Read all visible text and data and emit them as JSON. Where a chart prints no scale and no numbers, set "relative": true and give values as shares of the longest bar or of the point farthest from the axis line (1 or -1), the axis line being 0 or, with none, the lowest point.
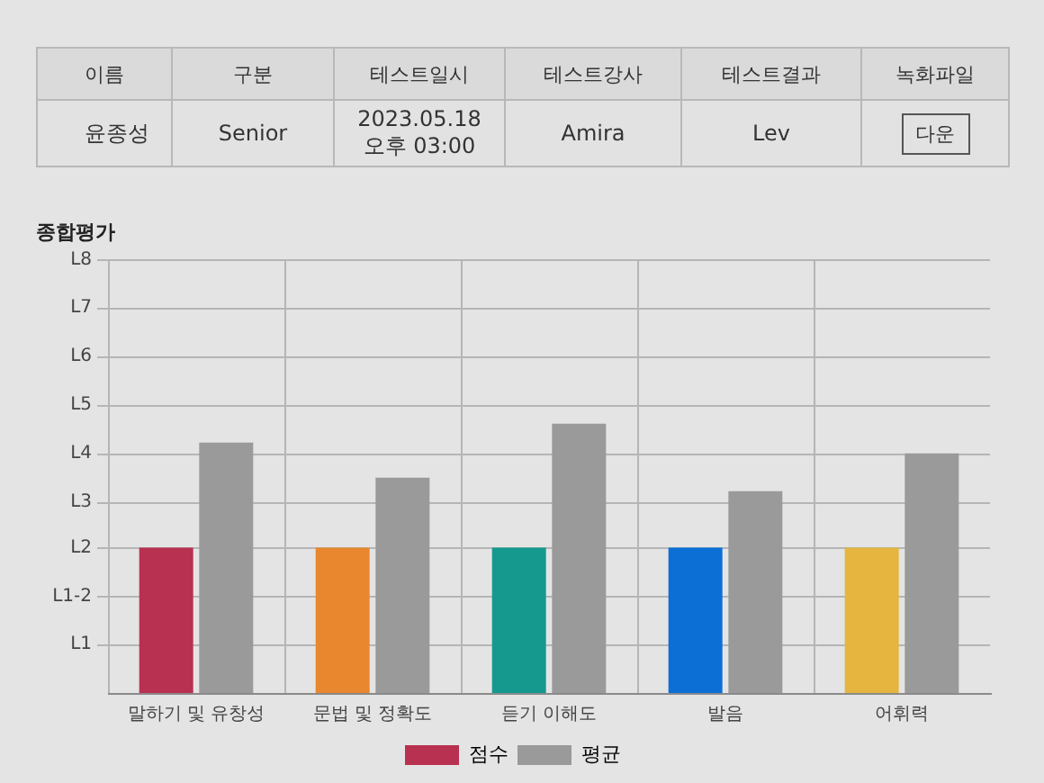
{
  "chart_data": [
    {
      "type": "other",
      "categories": [
        "이름",
        "구분",
        "테스트일시",
        "테스트강사",
        "테스트결과",
        "녹화파일"
      ],
      "annotations": [
        "윤종성",
        "Senior",
        "2023.05.18 오후 03:00",
        "Amira",
        "Lev",
        "다운"
      ]
    },
    {
      "type": "bar",
      "title": "종합평가",
      "relative": true,
      "categories": [
        "말하기 및 유창성",
        "문법 및 정확도",
        "듣기 이해도",
        "발음",
        "어휘력"
      ],
      "series": [
        {
          "name": "점수",
          "color": "#b83150",
          "colors": [
            "#b83150",
            "#e8872e",
            "#15998f",
            "#0b6fd6",
            "#e6b540"
          ],
          "values": [
            0.54,
            0.54,
            0.54,
            0.54,
            0.54
          ]
        },
        {
          "name": "평균",
          "color": "#9a9a9a",
          "values": [
            0.93,
            0.8,
            1,
            0.75,
            0.89
          ]
        }
      ],
      "ref_lines": [
        {
          "axis": "y",
          "value": 0.18,
          "label": "L1"
        },
        {
          "axis": "y",
          "value": 0.36,
          "label": "L1-2"
        },
        {
          "axis": "y",
          "value": 0.54,
          "label": "L2"
        },
        {
          "axis": "y",
          "value": 0.71,
          "label": "L3"
        },
        {
          "axis": "y",
          "value": 0.89,
          "label": "L4"
        },
        {
          "axis": "y",
          "value": 1.07,
          "label": "L5"
        },
        {
          "axis": "y",
          "value": 1.25,
          "label": "L6"
        },
        {
          "axis": "y",
          "value": 1.43,
          "label": "L7"
        },
        {
          "axis": "y",
          "value": 1.61,
          "label": "L8"
        }
      ],
      "grid": "x",
      "legend": "bottom"
    }
  ]
}
